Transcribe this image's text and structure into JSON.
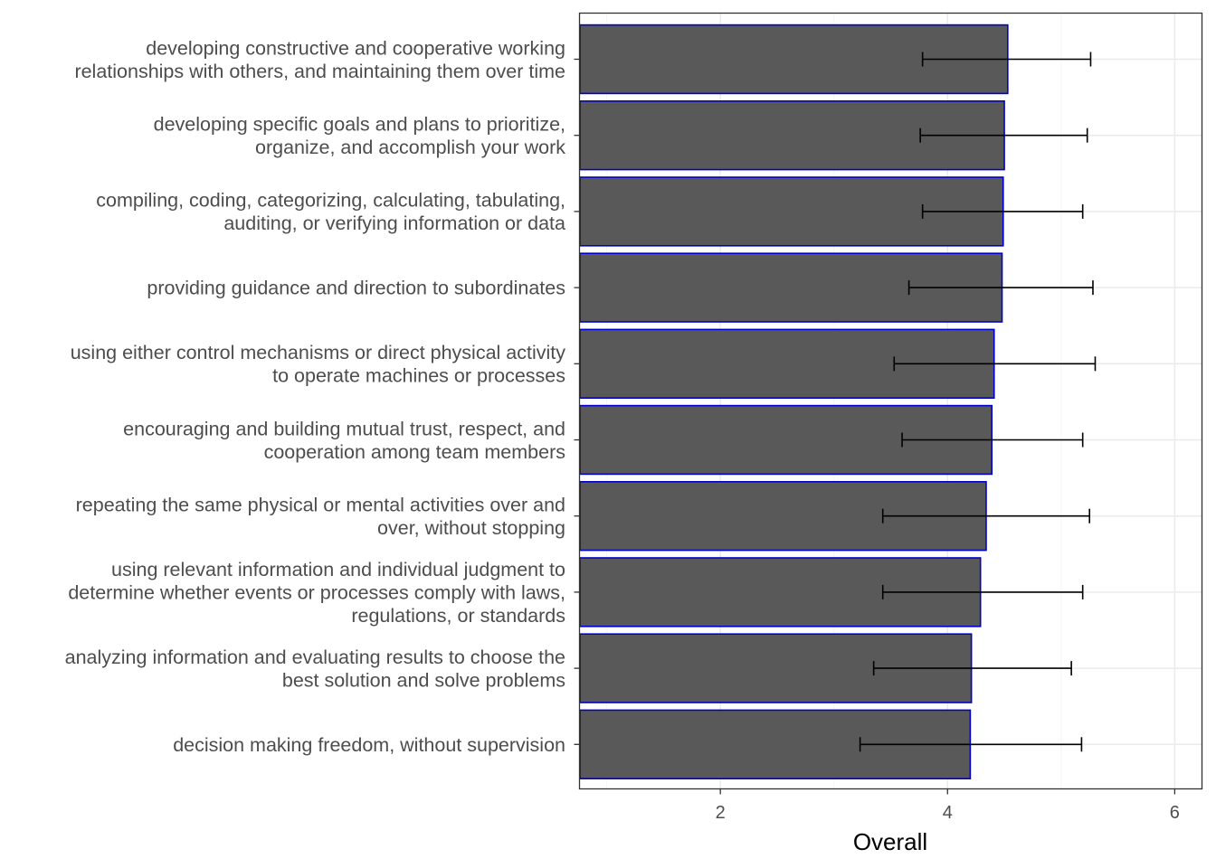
{
  "chart_data": {
    "type": "bar",
    "orientation": "horizontal",
    "xlabel": "Overall",
    "ylabel": "",
    "xlim": [
      0.76,
      6.24
    ],
    "xticks": [
      2,
      4,
      6
    ],
    "xtick_labels": [
      "2",
      "4",
      "6"
    ],
    "grid": true,
    "categories": [
      [
        "developing constructive and cooperative working",
        "relationships with others, and maintaining them over time"
      ],
      [
        "developing specific goals and plans to prioritize,",
        "organize, and accomplish your work"
      ],
      [
        "compiling, coding, categorizing, calculating, tabulating,",
        "auditing, or verifying information or data"
      ],
      [
        "providing guidance and direction to subordinates"
      ],
      [
        "using either control mechanisms or direct physical activity",
        "to operate machines or processes"
      ],
      [
        "encouraging and building mutual trust, respect, and",
        "cooperation among team members"
      ],
      [
        "repeating the same physical or mental activities over and",
        "over, without stopping"
      ],
      [
        "using relevant information and individual judgment to",
        "determine whether events or processes comply with laws,",
        "regulations, or standards"
      ],
      [
        "analyzing information and evaluating results to choose the",
        "best solution and solve problems"
      ],
      [
        "decision making freedom, without supervision"
      ]
    ],
    "values": [
      4.53,
      4.5,
      4.49,
      4.48,
      4.41,
      4.39,
      4.34,
      4.29,
      4.21,
      4.2
    ],
    "error_low": [
      3.78,
      3.76,
      3.78,
      3.66,
      3.53,
      3.6,
      3.43,
      3.43,
      3.35,
      3.23
    ],
    "error_high": [
      5.26,
      5.23,
      5.19,
      5.28,
      5.3,
      5.19,
      5.25,
      5.19,
      5.09,
      5.18
    ],
    "colors": {
      "bar_fill": "#595959",
      "bar_outline": "#0000cc",
      "error_bar": "#000000",
      "panel_border": "#333333",
      "grid_major": "#ebebeb",
      "grid_minor": "#f5f5f5"
    }
  }
}
